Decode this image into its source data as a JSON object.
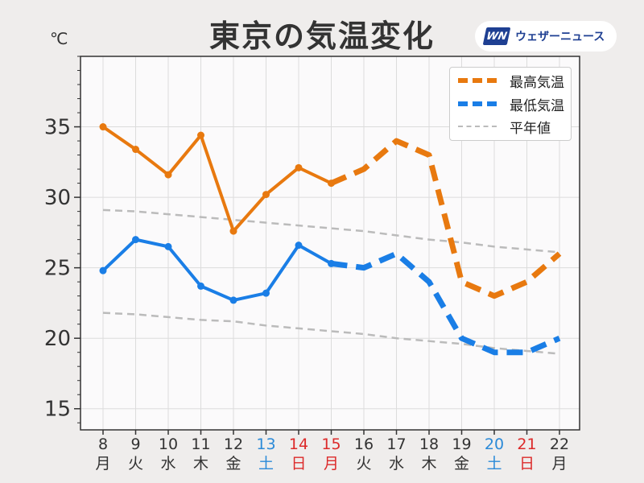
{
  "title": "東京の気温変化",
  "unit_label": "℃",
  "logo": {
    "mark": "WN",
    "text": "ウェザーニュース"
  },
  "colors": {
    "max": "#e8790f",
    "min": "#1a7ee6",
    "normal": "#bbbbbb",
    "weekday": "#333333",
    "saturday": "#2b8ad8",
    "holiday": "#dc2a2a"
  },
  "chart_data": {
    "type": "line",
    "title": "東京の気温変化",
    "ylabel": "℃",
    "ylim": [
      13.5,
      40
    ],
    "yticks": [
      15,
      20,
      25,
      30,
      35
    ],
    "grid": true,
    "legend_position": "top-right",
    "x": [
      {
        "day": "8",
        "weekday": "月",
        "color": "weekday"
      },
      {
        "day": "9",
        "weekday": "火",
        "color": "weekday"
      },
      {
        "day": "10",
        "weekday": "水",
        "color": "weekday"
      },
      {
        "day": "11",
        "weekday": "木",
        "color": "weekday"
      },
      {
        "day": "12",
        "weekday": "金",
        "color": "weekday"
      },
      {
        "day": "13",
        "weekday": "土",
        "color": "saturday"
      },
      {
        "day": "14",
        "weekday": "日",
        "color": "holiday"
      },
      {
        "day": "15",
        "weekday": "月",
        "color": "holiday"
      },
      {
        "day": "16",
        "weekday": "火",
        "color": "weekday"
      },
      {
        "day": "17",
        "weekday": "水",
        "color": "weekday"
      },
      {
        "day": "18",
        "weekday": "木",
        "color": "weekday"
      },
      {
        "day": "19",
        "weekday": "金",
        "color": "weekday"
      },
      {
        "day": "20",
        "weekday": "土",
        "color": "saturday"
      },
      {
        "day": "21",
        "weekday": "日",
        "color": "holiday"
      },
      {
        "day": "22",
        "weekday": "月",
        "color": "weekday"
      }
    ],
    "series": [
      {
        "name": "最高気温",
        "color_key": "max",
        "observed": [
          35.0,
          33.4,
          31.6,
          34.4,
          27.6,
          30.2,
          32.1,
          31.0
        ],
        "forecast_from": 7,
        "forecast": [
          31.0,
          32.0,
          34.0,
          33.0,
          24.0,
          23.0,
          24.0,
          26.0
        ]
      },
      {
        "name": "最低気温",
        "color_key": "min",
        "observed": [
          24.8,
          27.0,
          26.5,
          23.7,
          22.7,
          23.2,
          26.6,
          25.3
        ],
        "forecast_from": 7,
        "forecast": [
          25.3,
          25.0,
          26.0,
          24.0,
          20.0,
          19.0,
          19.0,
          20.0
        ]
      },
      {
        "name": "平年値",
        "color_key": "normal",
        "normal_max": [
          29.1,
          29.0,
          28.8,
          28.6,
          28.4,
          28.2,
          28.0,
          27.8,
          27.6,
          27.3,
          27.0,
          26.8,
          26.5,
          26.3,
          26.1
        ],
        "normal_min": [
          21.8,
          21.7,
          21.5,
          21.3,
          21.2,
          20.9,
          20.7,
          20.5,
          20.3,
          20.0,
          19.8,
          19.6,
          19.3,
          19.1,
          18.9
        ]
      }
    ]
  },
  "legend": [
    {
      "label": "最高気温",
      "color_key": "max",
      "style": "dashed-thick"
    },
    {
      "label": "最低気温",
      "color_key": "min",
      "style": "dashed-thick"
    },
    {
      "label": "平年値",
      "color_key": "normal",
      "style": "dashed-thin"
    }
  ]
}
